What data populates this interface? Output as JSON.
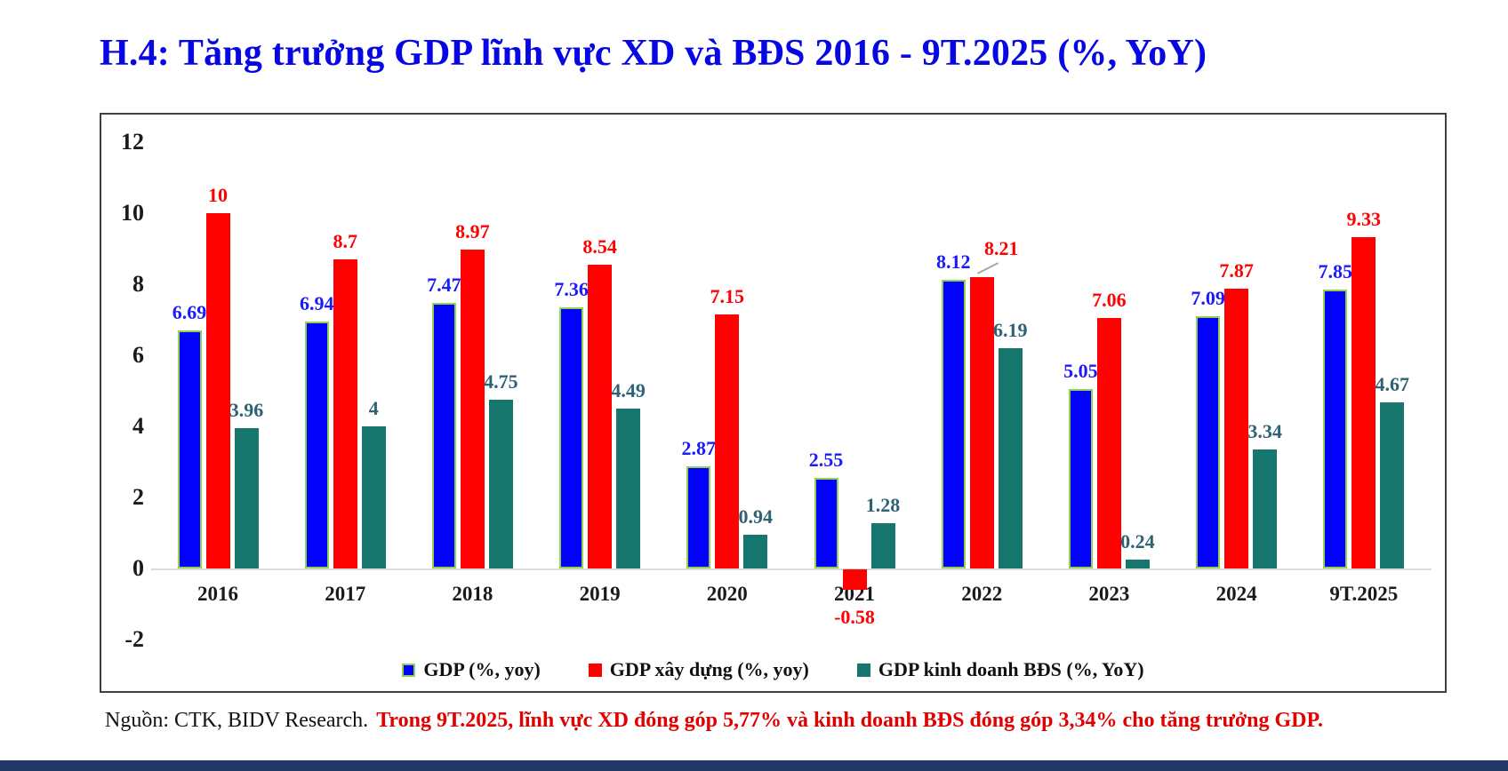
{
  "title": "H.4: Tăng trưởng GDP lĩnh vực XD và BĐS 2016 - 9T.2025 (%, YoY)",
  "source": {
    "label": "Nguồn: CTK, BIDV Research.",
    "note": "Trong 9T.2025, lĩnh vực XD đóng góp 5,77% và kinh doanh BĐS đóng góp 3,34% cho tăng trưởng GDP."
  },
  "colors": {
    "title_text": "#0707e6",
    "frame_border": "#3f3f3f",
    "axis_baseline": "#dcdcdc",
    "axis_text": "#1a1a1a",
    "source_note_red": "#e00000",
    "footer_strip_navy": "#1f3864"
  },
  "chart_data": {
    "type": "bar",
    "title": "H.4: Tăng trưởng GDP lĩnh vực XD và BĐS 2016 - 9T.2025 (%, YoY)",
    "categories": [
      "2016",
      "2017",
      "2018",
      "2019",
      "2020",
      "2021",
      "2022",
      "2023",
      "2024",
      "9T.2025"
    ],
    "series": [
      {
        "name": "GDP (%, yoy)",
        "values": [
          6.69,
          6.94,
          7.47,
          7.36,
          2.87,
          2.55,
          8.12,
          5.05,
          7.09,
          7.85
        ],
        "labels": [
          "6.69",
          "6.94",
          "7.47",
          "7.36",
          "2.87",
          "2.55",
          "8.12",
          "5.05",
          "7.09",
          "7.85"
        ],
        "color": "#0303fb",
        "border_color": "#92d050",
        "label_color": "#1a1aff"
      },
      {
        "name": "GDP xây dựng (%, yoy)",
        "values": [
          10,
          8.7,
          8.97,
          8.54,
          7.15,
          -0.58,
          8.21,
          7.06,
          7.87,
          9.33
        ],
        "labels": [
          "10",
          "8.7",
          "8.97",
          "8.54",
          "7.15",
          "-0.58",
          "8.21",
          "7.06",
          "7.87",
          "9.33"
        ],
        "color": "#fe0202",
        "border_color": null,
        "label_color": "#fe0202"
      },
      {
        "name": "GDP kinh doanh BĐS (%, YoY)",
        "values": [
          3.96,
          4,
          4.75,
          4.49,
          0.94,
          1.28,
          6.19,
          0.24,
          3.34,
          4.67
        ],
        "labels": [
          "3.96",
          "4",
          "4.75",
          "4.49",
          "0.94",
          "1.28",
          "6.19",
          "0.24",
          "3.34",
          "4.67"
        ],
        "color": "#17766e",
        "border_color": null,
        "label_color": "#2d6374"
      }
    ],
    "ylim": [
      -2,
      12
    ],
    "yticks": [
      12,
      10,
      8,
      6,
      4,
      2,
      0,
      -2
    ],
    "xlabel": "",
    "ylabel": "",
    "grid": false,
    "legend_position": "bottom-center",
    "callout": {
      "series_index": 1,
      "category_index": 6
    }
  }
}
